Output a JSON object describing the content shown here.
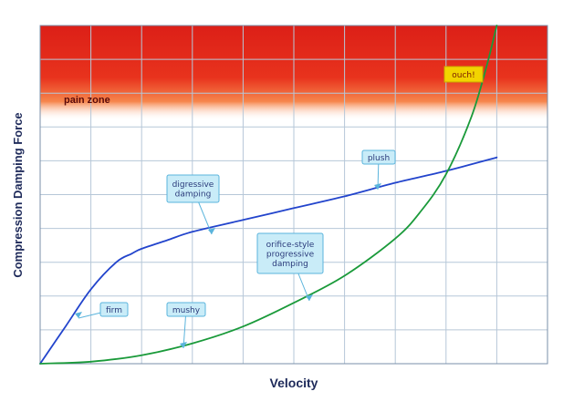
{
  "chart_data": {
    "type": "line",
    "title": "",
    "xlabel": "Velocity",
    "ylabel": "Compression Damping Force",
    "xlim": [
      0,
      100
    ],
    "ylim": [
      0,
      100
    ],
    "grid": true,
    "legend": "none",
    "show_tick_labels": false,
    "series": [
      {
        "key": "digressive",
        "color": "#2244cc",
        "x": [
          0,
          5,
          10,
          15,
          18,
          20,
          25,
          30,
          40,
          50,
          60,
          70,
          80,
          90
        ],
        "y": [
          0,
          11,
          22,
          30,
          32.5,
          34,
          36.5,
          39,
          42.5,
          46,
          49.5,
          53.5,
          57,
          61
        ]
      },
      {
        "key": "orifice-progressive",
        "color": "#1a9a3a",
        "x": [
          0,
          10,
          20,
          30,
          40,
          50,
          60,
          70,
          75,
          80,
          85,
          88,
          90
        ],
        "y": [
          0,
          0.6,
          2.5,
          6,
          11,
          18,
          26,
          37,
          45,
          56,
          73,
          88,
          100
        ]
      }
    ],
    "zones": [
      {
        "label": "pain zone",
        "y_from": 80,
        "y_to": 100,
        "color": "#e0261b"
      }
    ],
    "annotations": [
      {
        "key": "firm",
        "text": "firm",
        "lines": [
          "firm"
        ],
        "series": "digressive",
        "at_x": 7
      },
      {
        "key": "digressive",
        "text": "digressive damping",
        "lines": [
          "digressive",
          "damping"
        ],
        "series": "digressive",
        "at_x": 34
      },
      {
        "key": "plush",
        "text": "plush",
        "lines": [
          "plush"
        ],
        "series": "digressive",
        "at_x": 66
      },
      {
        "key": "mushy",
        "text": "mushy",
        "lines": [
          "mushy"
        ],
        "series": "orifice-progressive",
        "at_x": 30
      },
      {
        "key": "orifice",
        "text": "orifice-style progressive damping",
        "lines": [
          "orifice-style",
          "progressive",
          "damping"
        ],
        "series": "orifice-progressive",
        "at_x": 53
      },
      {
        "key": "ouch",
        "text": "ouch!",
        "lines": [
          "ouch!"
        ],
        "series": "orifice-progressive",
        "at_x": 89
      }
    ]
  }
}
